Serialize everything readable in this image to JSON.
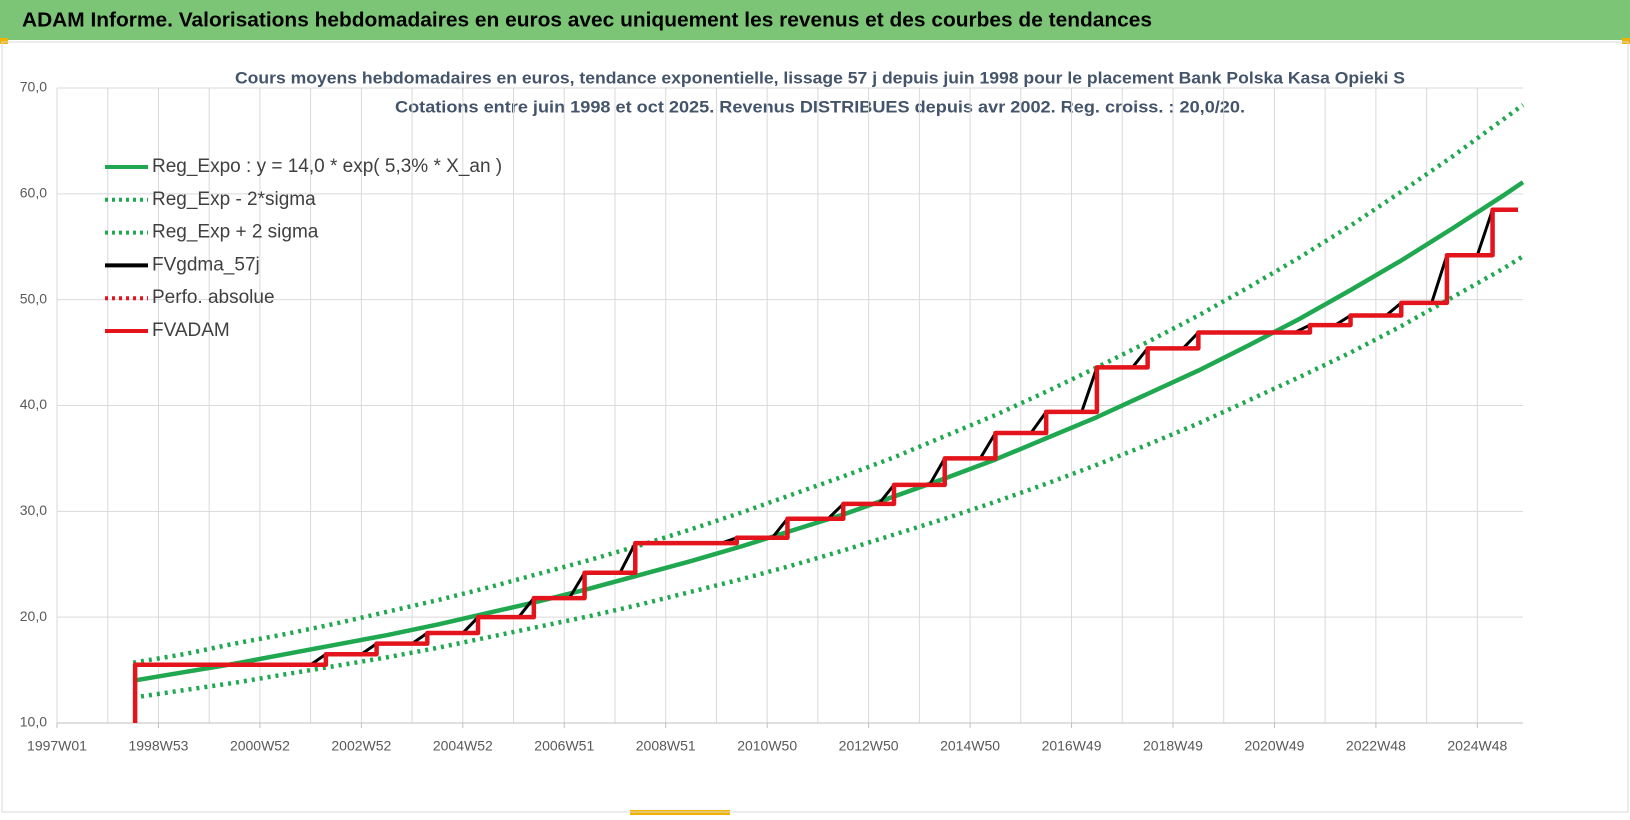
{
  "header": {
    "title": "ADAM Informe. Valorisations hebdomadaires en euros avec uniquement les revenus et des courbes de tendances"
  },
  "chart_data": {
    "type": "line",
    "title": "Cours moyens hebdomadaires en euros, tendance exponentielle, lissage 57 j depuis juin 1998 pour le placement Bank Polska Kasa Opieki S",
    "subtitle": "Cotations entre juin 1998 et oct 2025. Revenus DISTRIBUES depuis avr 2002. Reg. croiss. : 20,0/20.",
    "xlim": [
      1997,
      2025.9
    ],
    "xticks": [
      {
        "value": 1997,
        "label": "1997W01"
      },
      {
        "value": 1999,
        "label": "1998W53"
      },
      {
        "value": 2001,
        "label": "2000W52"
      },
      {
        "value": 2003,
        "label": "2002W52"
      },
      {
        "value": 2005,
        "label": "2004W52"
      },
      {
        "value": 2007,
        "label": "2006W51"
      },
      {
        "value": 2009,
        "label": "2008W51"
      },
      {
        "value": 2011,
        "label": "2010W50"
      },
      {
        "value": 2013,
        "label": "2012W50"
      },
      {
        "value": 2015,
        "label": "2014W50"
      },
      {
        "value": 2017,
        "label": "2016W49"
      },
      {
        "value": 2019,
        "label": "2018W49"
      },
      {
        "value": 2021,
        "label": "2020W49"
      },
      {
        "value": 2023,
        "label": "2022W48"
      },
      {
        "value": 2025,
        "label": "2024W48"
      }
    ],
    "ylim": [
      10,
      70
    ],
    "yticks": [
      {
        "value": 10,
        "label": "10,0"
      },
      {
        "value": 20,
        "label": "20,0"
      },
      {
        "value": 30,
        "label": "30,0"
      },
      {
        "value": 40,
        "label": "40,0"
      },
      {
        "value": 50,
        "label": "50,0"
      },
      {
        "value": 60,
        "label": "60,0"
      },
      {
        "value": 70,
        "label": "70,0"
      }
    ],
    "grid": true,
    "legend": "top-left",
    "series": [
      {
        "name": "Reg_Expo : y = 14,0 * exp( 5,3% *  X_an )",
        "color": "#1fa84f",
        "dash": false,
        "x": [
          1998.5,
          1999.5,
          2000.5,
          2001.5,
          2002.5,
          2003.5,
          2004.5,
          2005.5,
          2006.5,
          2007.5,
          2008.5,
          2009.5,
          2010.5,
          2011.5,
          2012.5,
          2013.5,
          2014.5,
          2015.5,
          2016.5,
          2017.5,
          2018.5,
          2019.5,
          2020.5,
          2021.5,
          2022.5,
          2023.5,
          2024.5,
          2025.5,
          2025.9
        ],
        "values": [
          14.0,
          14.8,
          15.6,
          16.5,
          17.4,
          18.3,
          19.3,
          20.4,
          21.5,
          22.7,
          24.0,
          25.3,
          26.7,
          28.2,
          29.7,
          31.4,
          33.1,
          34.9,
          36.9,
          38.9,
          41.1,
          43.3,
          45.7,
          48.2,
          50.9,
          53.7,
          56.7,
          59.8,
          61.1
        ]
      },
      {
        "name": "Reg_Exp - 2*sigma",
        "color": "#1fa84f",
        "dash": true,
        "x": [
          1998.5,
          1999.5,
          2000.5,
          2001.5,
          2002.5,
          2003.5,
          2004.5,
          2005.5,
          2006.5,
          2007.5,
          2008.5,
          2009.5,
          2010.5,
          2011.5,
          2012.5,
          2013.5,
          2014.5,
          2015.5,
          2016.5,
          2017.5,
          2018.5,
          2019.5,
          2020.5,
          2021.5,
          2022.5,
          2023.5,
          2024.5,
          2025.5,
          2025.9
        ],
        "values": [
          12.4,
          13.1,
          13.8,
          14.6,
          15.4,
          16.2,
          17.1,
          18.1,
          19.1,
          20.1,
          21.2,
          22.4,
          23.6,
          24.9,
          26.3,
          27.8,
          29.3,
          30.9,
          32.6,
          34.4,
          36.3,
          38.3,
          40.5,
          42.7,
          45.0,
          47.5,
          50.2,
          52.9,
          54.1
        ]
      },
      {
        "name": "Reg_Exp + 2 sigma",
        "color": "#1fa84f",
        "dash": true,
        "x": [
          1998.5,
          1999.5,
          2000.5,
          2001.5,
          2002.5,
          2003.5,
          2004.5,
          2005.5,
          2006.5,
          2007.5,
          2008.5,
          2009.5,
          2010.5,
          2011.5,
          2012.5,
          2013.5,
          2014.5,
          2015.5,
          2016.5,
          2017.5,
          2018.5,
          2019.5,
          2020.5,
          2021.5,
          2022.5,
          2023.5,
          2024.5,
          2025.5,
          2025.9
        ],
        "values": [
          15.7,
          16.5,
          17.5,
          18.4,
          19.4,
          20.5,
          21.6,
          22.8,
          24.1,
          25.4,
          26.8,
          28.3,
          29.9,
          31.6,
          33.3,
          35.1,
          37.1,
          39.1,
          41.3,
          43.6,
          46.0,
          48.5,
          51.2,
          54.0,
          57.0,
          60.2,
          63.5,
          67.0,
          68.4
        ]
      },
      {
        "name": "FVgdma_57j",
        "color": "#000000",
        "dash": false,
        "x": [
          1998.54,
          2002.0,
          2002.3,
          2003.0,
          2003.3,
          2004.0,
          2004.3,
          2005.0,
          2005.3,
          2006.1,
          2006.4,
          2007.1,
          2007.4,
          2008.1,
          2008.4,
          2010.1,
          2010.4,
          2011.1,
          2011.4,
          2012.2,
          2012.5,
          2013.2,
          2013.5,
          2014.2,
          2014.5,
          2015.2,
          2015.5,
          2016.2,
          2016.5,
          2017.2,
          2017.5,
          2018.2,
          2018.5,
          2019.2,
          2019.5,
          2021.4,
          2021.7,
          2022.2,
          2022.5,
          2023.2,
          2023.5,
          2024.1,
          2024.4,
          2025.0,
          2025.3,
          2025.8
        ],
        "values": [
          15.5,
          15.5,
          16.5,
          16.5,
          17.5,
          17.5,
          18.5,
          18.5,
          20.0,
          20.0,
          21.8,
          21.8,
          24.2,
          24.2,
          27.0,
          27.0,
          27.5,
          27.5,
          29.3,
          29.3,
          30.7,
          30.7,
          32.5,
          32.5,
          35.0,
          35.0,
          37.4,
          37.4,
          39.4,
          39.4,
          43.6,
          43.6,
          45.4,
          45.4,
          46.9,
          46.9,
          47.6,
          47.6,
          48.5,
          48.5,
          49.7,
          49.7,
          54.2,
          54.2,
          58.5,
          58.5
        ]
      },
      {
        "name": "Perfo. absolue",
        "color": "#e3141b",
        "dash": true,
        "x": [],
        "values": []
      },
      {
        "name": "FVADAM",
        "color": "#e3141b",
        "dash": false,
        "x": [
          1998.54,
          1998.54,
          2002.3,
          2002.3,
          2003.3,
          2003.3,
          2004.3,
          2004.3,
          2005.3,
          2005.3,
          2006.4,
          2006.4,
          2007.4,
          2007.4,
          2008.4,
          2008.4,
          2010.4,
          2010.4,
          2011.4,
          2011.4,
          2012.5,
          2012.5,
          2013.5,
          2013.5,
          2014.5,
          2014.5,
          2015.5,
          2015.5,
          2016.5,
          2016.5,
          2017.5,
          2017.5,
          2018.5,
          2018.5,
          2019.5,
          2019.5,
          2021.7,
          2021.7,
          2022.5,
          2022.5,
          2023.5,
          2023.5,
          2024.4,
          2024.4,
          2025.3,
          2025.3,
          2025.8
        ],
        "values": [
          10,
          15.5,
          15.5,
          16.5,
          16.5,
          17.5,
          17.5,
          18.5,
          18.5,
          20.0,
          20.0,
          21.8,
          21.8,
          24.2,
          24.2,
          27.0,
          27.0,
          27.5,
          27.5,
          29.3,
          29.3,
          30.7,
          30.7,
          32.5,
          32.5,
          35.0,
          35.0,
          37.4,
          37.4,
          39.4,
          39.4,
          43.6,
          43.6,
          45.4,
          45.4,
          46.9,
          46.9,
          47.6,
          47.6,
          48.5,
          48.5,
          49.7,
          49.7,
          54.2,
          54.2,
          58.5,
          58.5
        ]
      }
    ]
  }
}
